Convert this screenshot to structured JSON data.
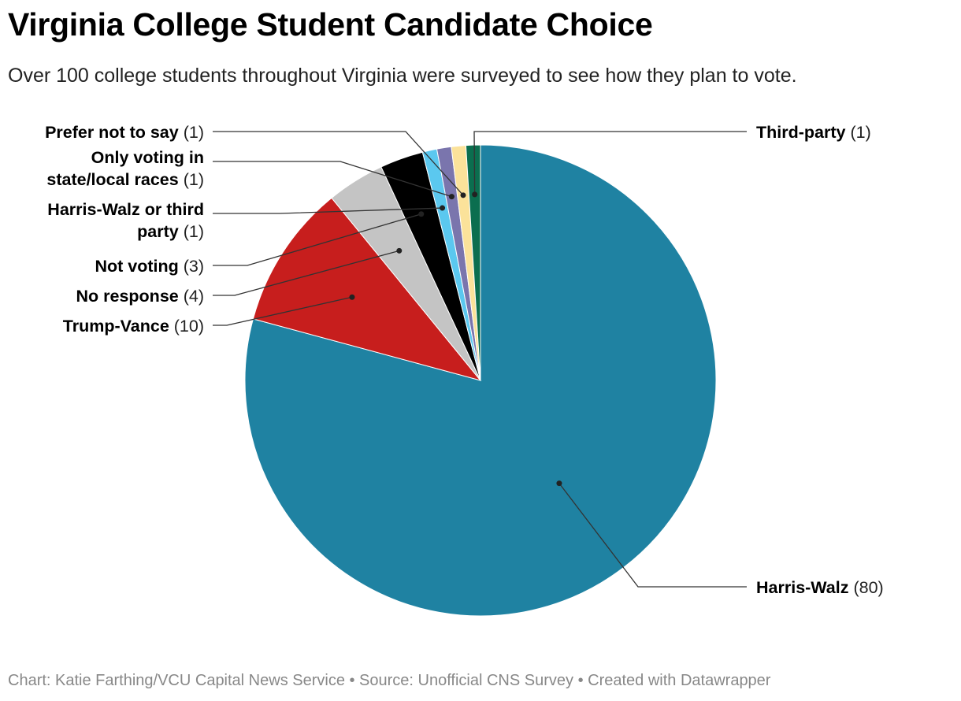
{
  "title": "Virginia College Student Candidate Choice",
  "subtitle": "Over 100 college students throughout Virginia were surveyed to see how they plan to vote.",
  "footer": {
    "credit": "Chart: Katie Farthing/VCU Capital News Service • Source: Unofficial CNS Survey • Created with Datawrapper"
  },
  "chart_data": {
    "type": "pie",
    "title": "Virginia College Student Candidate Choice",
    "slices": [
      {
        "label": "Harris-Walz",
        "value": 80,
        "value_text": "(80)",
        "color": "#1f82a2"
      },
      {
        "label": "Trump-Vance",
        "value": 10,
        "value_text": "(10)",
        "color": "#c71e1d"
      },
      {
        "label": "No response",
        "value": 4,
        "value_text": "(4)",
        "color": "#c4c4c4"
      },
      {
        "label": "Not voting",
        "value": 3,
        "value_text": "(3)",
        "color": "#000000"
      },
      {
        "label": "Harris-Walz or third party",
        "label_lines": [
          "Harris-Walz or third",
          "party"
        ],
        "value": 1,
        "value_text": "(1)",
        "color": "#5bc8ef"
      },
      {
        "label": "Only voting in state/local races",
        "label_lines": [
          "Only voting in",
          "state/local races"
        ],
        "value": 1,
        "value_text": "(1)",
        "color": "#7a75ad"
      },
      {
        "label": "Prefer not to say",
        "value": 1,
        "value_text": "(1)",
        "color": "#fbe29a"
      },
      {
        "label": "Third-party",
        "value": 1,
        "value_text": "(1)",
        "color": "#0b6e4f"
      }
    ],
    "direction": "clockwise from top",
    "legend": "none (direct labels with leader lines)"
  }
}
